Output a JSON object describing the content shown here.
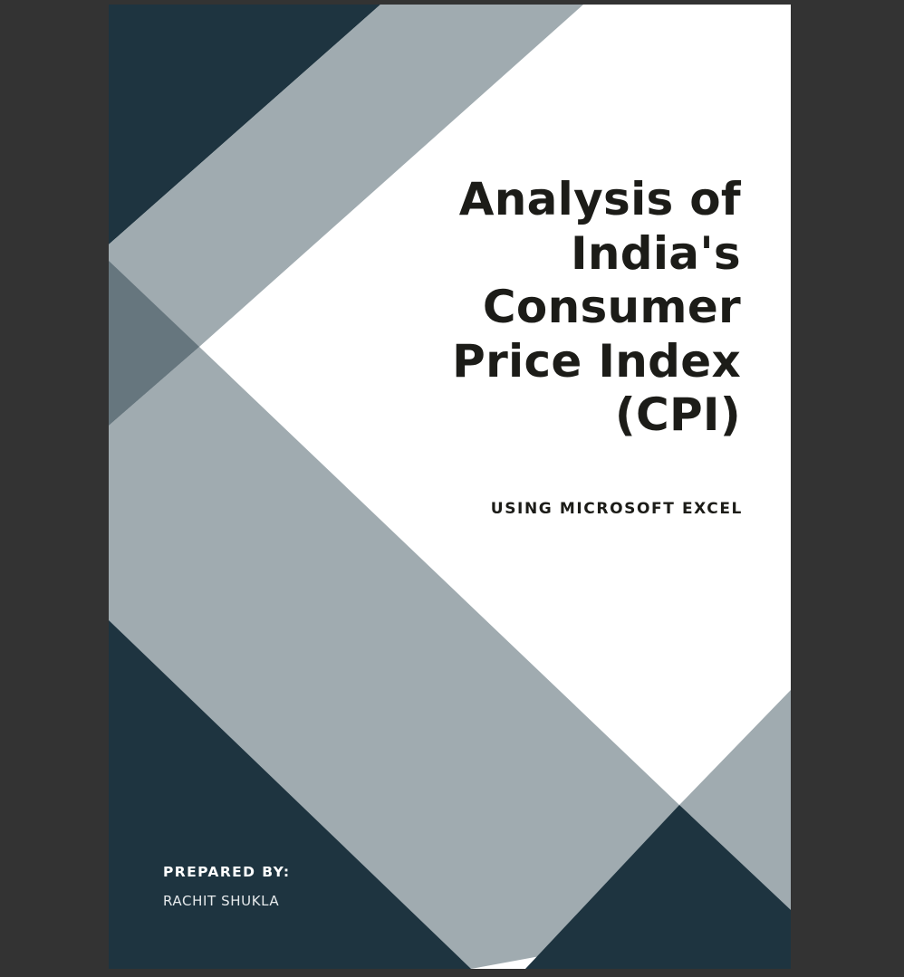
{
  "cover": {
    "title_lines": [
      "Analysis of",
      "India's",
      "Consumer",
      "Price Index",
      "(CPI)"
    ],
    "subtitle": "USING MICROSOFT EXCEL",
    "prepared_by_label": "PREPARED BY:",
    "author": "RACHIT SHUKLA"
  },
  "colors": {
    "viewer_background": "#333333",
    "page_background": "#ffffff",
    "navy": "#1e3440",
    "light_slate": "#a0abb0",
    "mid_slate": "#66767e",
    "title_text": "#1c1c18",
    "footer_text": "#ffffff"
  }
}
